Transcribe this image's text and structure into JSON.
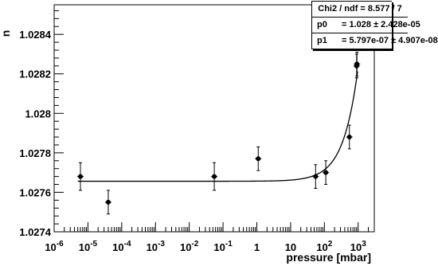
{
  "chart_data": {
    "type": "scatter",
    "title": "",
    "xlabel": "pressure [mbar]",
    "ylabel": "n",
    "x_log": true,
    "xlim": [
      1e-06,
      3000
    ],
    "ylim": [
      1.0274,
      1.02855
    ],
    "x_ticks": [
      1e-06,
      1e-05,
      0.0001,
      0.001,
      0.01,
      0.1,
      1,
      10,
      100,
      1000
    ],
    "x_tick_labels": [
      {
        "base": "10",
        "exp": "-6"
      },
      {
        "base": "10",
        "exp": "-5"
      },
      {
        "base": "10",
        "exp": "-4"
      },
      {
        "base": "10",
        "exp": "-3"
      },
      {
        "base": "10",
        "exp": "-2"
      },
      {
        "base": "10",
        "exp": "-1"
      },
      {
        "base": "1",
        "exp": ""
      },
      {
        "base": "10",
        "exp": ""
      },
      {
        "base": "10",
        "exp": "2"
      },
      {
        "base": "10",
        "exp": "3"
      }
    ],
    "y_ticks": [
      1.0274,
      1.0276,
      1.0278,
      1.028,
      1.0282,
      1.0284
    ],
    "y_tick_labels": [
      "1.0274",
      "1.0276",
      "1.0278",
      "1.028",
      "1.0282",
      "1.0284"
    ],
    "grid": false,
    "points": [
      {
        "x": 6e-06,
        "y": 1.02768,
        "err": 7e-05
      },
      {
        "x": 4e-05,
        "y": 1.02755,
        "err": 6e-05
      },
      {
        "x": 0.055,
        "y": 1.02768,
        "err": 7e-05
      },
      {
        "x": 1.1,
        "y": 1.02777,
        "err": 6e-05
      },
      {
        "x": 55,
        "y": 1.02768,
        "err": 6e-05
      },
      {
        "x": 110,
        "y": 1.0277,
        "err": 6e-05
      },
      {
        "x": 550,
        "y": 1.02788,
        "err": 6e-05
      },
      {
        "x": 900,
        "y": 1.02824,
        "err": 6e-05
      },
      {
        "x": 920,
        "y": 1.02825,
        "err": 6e-05
      }
    ],
    "fit": {
      "p0": 1.028,
      "p1": 5.797e-07,
      "p0_display": 1.027656,
      "p1_display": 5.797e-07
    },
    "stats": {
      "header": "Chi2 / ndf = 8.577 / 7",
      "rows": [
        {
          "label": "p0",
          "value": "= 1.028 ± 2.428e-05"
        },
        {
          "label": "p1",
          "value": "= 5.797e-07 ± 4.907e-08"
        }
      ]
    }
  }
}
